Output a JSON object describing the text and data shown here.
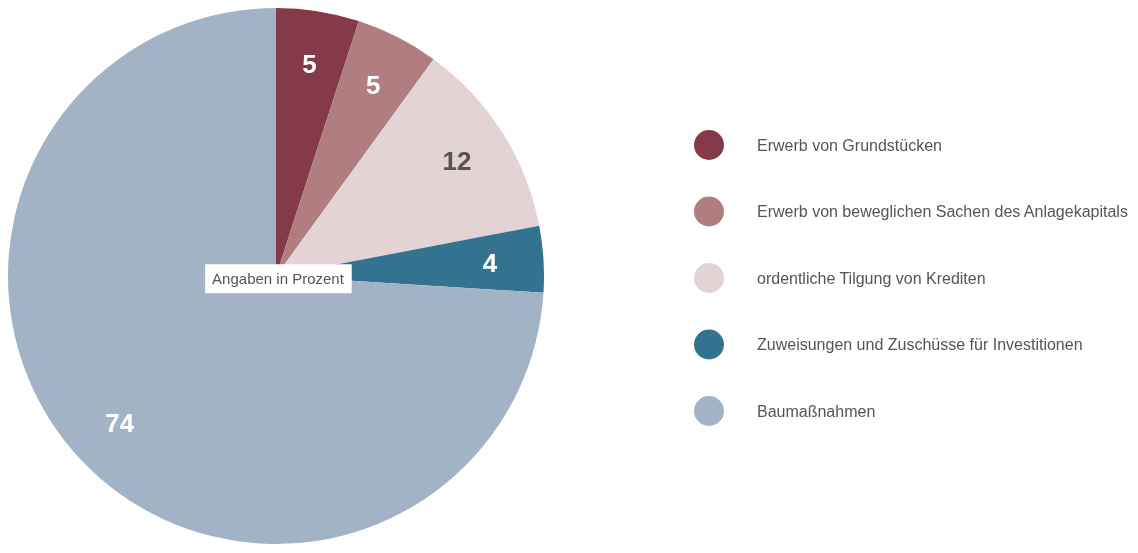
{
  "chart_data": {
    "type": "pie",
    "categories": [
      "Erwerb von Grundstücken",
      "Erwerb von beweglichen Sachen des Anlagekapitals",
      "ordentliche Tilgung von Krediten",
      "Zuweisungen und Zuschüsse für Investitionen",
      "Baumaßnahmen"
    ],
    "values": [
      5,
      5,
      12,
      4,
      74
    ],
    "colors": [
      "#843a49",
      "#b07e80",
      "#e4d3d5",
      "#347390",
      "#a3b3c6"
    ],
    "data_labels": true,
    "legend": "right",
    "annotations": [
      "Angaben in Prozent"
    ]
  }
}
